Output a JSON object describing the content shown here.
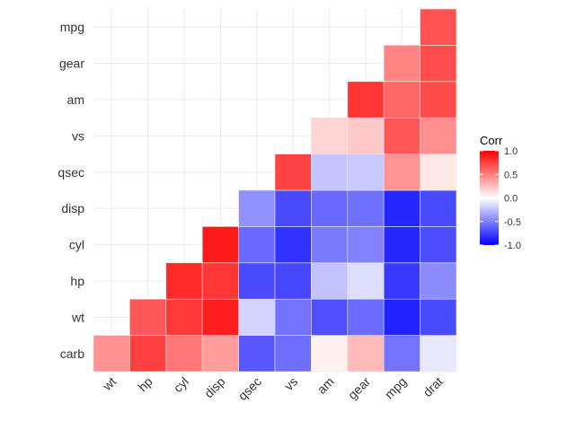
{
  "chart_data": {
    "type": "heatmap",
    "title": "",
    "xlabel": "",
    "ylabel": "",
    "x_categories": [
      "wt",
      "hp",
      "cyl",
      "disp",
      "qsec",
      "vs",
      "am",
      "gear",
      "mpg",
      "drat"
    ],
    "y_categories": [
      "carb",
      "wt",
      "hp",
      "cyl",
      "disp",
      "qsec",
      "vs",
      "am",
      "gear",
      "mpg"
    ],
    "cells": [
      {
        "x": "wt",
        "y": "carb",
        "value": 0.43
      },
      {
        "x": "hp",
        "y": "carb",
        "value": 0.75
      },
      {
        "x": "hp",
        "y": "wt",
        "value": 0.66
      },
      {
        "x": "cyl",
        "y": "carb",
        "value": 0.53
      },
      {
        "x": "cyl",
        "y": "wt",
        "value": 0.78
      },
      {
        "x": "cyl",
        "y": "hp",
        "value": 0.83
      },
      {
        "x": "disp",
        "y": "carb",
        "value": 0.39
      },
      {
        "x": "disp",
        "y": "wt",
        "value": 0.89
      },
      {
        "x": "disp",
        "y": "hp",
        "value": 0.79
      },
      {
        "x": "disp",
        "y": "cyl",
        "value": 0.9
      },
      {
        "x": "qsec",
        "y": "carb",
        "value": -0.66
      },
      {
        "x": "qsec",
        "y": "wt",
        "value": -0.17
      },
      {
        "x": "qsec",
        "y": "hp",
        "value": -0.71
      },
      {
        "x": "qsec",
        "y": "cyl",
        "value": -0.59
      },
      {
        "x": "qsec",
        "y": "disp",
        "value": -0.43
      },
      {
        "x": "vs",
        "y": "carb",
        "value": -0.57
      },
      {
        "x": "vs",
        "y": "wt",
        "value": -0.55
      },
      {
        "x": "vs",
        "y": "hp",
        "value": -0.72
      },
      {
        "x": "vs",
        "y": "cyl",
        "value": -0.81
      },
      {
        "x": "vs",
        "y": "disp",
        "value": -0.71
      },
      {
        "x": "vs",
        "y": "qsec",
        "value": 0.74
      },
      {
        "x": "am",
        "y": "carb",
        "value": 0.06
      },
      {
        "x": "am",
        "y": "wt",
        "value": -0.69
      },
      {
        "x": "am",
        "y": "hp",
        "value": -0.24
      },
      {
        "x": "am",
        "y": "cyl",
        "value": -0.52
      },
      {
        "x": "am",
        "y": "disp",
        "value": -0.59
      },
      {
        "x": "am",
        "y": "qsec",
        "value": -0.23
      },
      {
        "x": "am",
        "y": "vs",
        "value": 0.17
      },
      {
        "x": "gear",
        "y": "carb",
        "value": 0.27
      },
      {
        "x": "gear",
        "y": "wt",
        "value": -0.58
      },
      {
        "x": "gear",
        "y": "hp",
        "value": -0.13
      },
      {
        "x": "gear",
        "y": "cyl",
        "value": -0.49
      },
      {
        "x": "gear",
        "y": "disp",
        "value": -0.56
      },
      {
        "x": "gear",
        "y": "qsec",
        "value": -0.21
      },
      {
        "x": "gear",
        "y": "vs",
        "value": 0.21
      },
      {
        "x": "gear",
        "y": "am",
        "value": 0.79
      },
      {
        "x": "mpg",
        "y": "carb",
        "value": -0.55
      },
      {
        "x": "mpg",
        "y": "wt",
        "value": -0.87
      },
      {
        "x": "mpg",
        "y": "hp",
        "value": -0.78
      },
      {
        "x": "mpg",
        "y": "cyl",
        "value": -0.85
      },
      {
        "x": "mpg",
        "y": "disp",
        "value": -0.85
      },
      {
        "x": "mpg",
        "y": "qsec",
        "value": 0.42
      },
      {
        "x": "mpg",
        "y": "vs",
        "value": 0.66
      },
      {
        "x": "mpg",
        "y": "am",
        "value": 0.6
      },
      {
        "x": "mpg",
        "y": "gear",
        "value": 0.48
      },
      {
        "x": "drat",
        "y": "carb",
        "value": -0.09
      },
      {
        "x": "drat",
        "y": "wt",
        "value": -0.71
      },
      {
        "x": "drat",
        "y": "hp",
        "value": -0.45
      },
      {
        "x": "drat",
        "y": "cyl",
        "value": -0.7
      },
      {
        "x": "drat",
        "y": "disp",
        "value": -0.71
      },
      {
        "x": "drat",
        "y": "qsec",
        "value": 0.09
      },
      {
        "x": "drat",
        "y": "vs",
        "value": 0.44
      },
      {
        "x": "drat",
        "y": "am",
        "value": 0.71
      },
      {
        "x": "drat",
        "y": "gear",
        "value": 0.7
      },
      {
        "x": "drat",
        "y": "mpg",
        "value": 0.68
      }
    ],
    "color_scale": {
      "low": "#0000ff",
      "mid": "#ffffff",
      "high": "#ff0000",
      "range": [
        -1,
        1
      ]
    },
    "legend": {
      "title": "Corr",
      "position": "right",
      "ticks": [
        {
          "value": 1,
          "label": "1.0"
        },
        {
          "value": 0.5,
          "label": "0.5"
        },
        {
          "value": 0,
          "label": "0.0"
        },
        {
          "value": -0.5,
          "label": "-0.5"
        },
        {
          "value": -1,
          "label": "-1.0"
        }
      ]
    },
    "grid": true
  }
}
